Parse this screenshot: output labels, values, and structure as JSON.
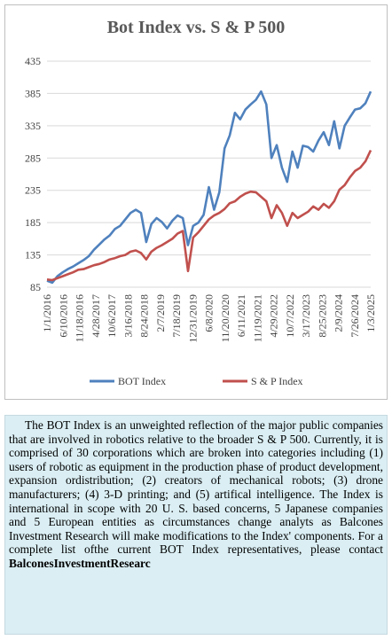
{
  "chart_data": {
    "type": "line",
    "title": "Bot Index vs. S & P 500",
    "ylim": [
      85,
      435
    ],
    "yticks": [
      85,
      135,
      185,
      235,
      285,
      335,
      385,
      435
    ],
    "xticks": [
      "1/1/2016",
      "6/10/2016",
      "11/18/2016",
      "4/28/2017",
      "10/6/2017",
      "3/16/2018",
      "8/24/2018",
      "2/7/2019",
      "7/18/2019",
      "12/31/2019",
      "6/8/2020",
      "11/20/2020",
      "6/11/2021",
      "11/19/2021",
      "4/29/2022",
      "10/7/2022",
      "3/17/2023",
      "8/25/2023",
      "2/9/2024",
      "7/26/2024",
      "1/3/2025"
    ],
    "legend_position": "bottom",
    "grid": true,
    "series": [
      {
        "name": "BOT Index",
        "color": "#4f81bd",
        "values": [
          95,
          92,
          102,
          108,
          113,
          117,
          122,
          127,
          133,
          143,
          151,
          159,
          165,
          175,
          180,
          190,
          200,
          205,
          200,
          155,
          183,
          192,
          186,
          176,
          188,
          196,
          192,
          150,
          180,
          185,
          197,
          240,
          205,
          232,
          300,
          320,
          355,
          345,
          360,
          368,
          375,
          388,
          368,
          285,
          305,
          270,
          248,
          295,
          270,
          304,
          302,
          295,
          312,
          325,
          305,
          342,
          300,
          335,
          348,
          360,
          362,
          370,
          388
        ]
      },
      {
        "name": "S & P Index",
        "color": "#c0504d",
        "values": [
          97,
          96,
          99,
          102,
          105,
          108,
          112,
          113,
          116,
          119,
          121,
          124,
          128,
          130,
          133,
          135,
          140,
          142,
          138,
          128,
          140,
          146,
          150,
          155,
          160,
          168,
          172,
          110,
          162,
          170,
          180,
          190,
          196,
          200,
          206,
          215,
          218,
          225,
          230,
          233,
          232,
          225,
          218,
          192,
          212,
          200,
          180,
          200,
          192,
          197,
          202,
          210,
          205,
          214,
          208,
          218,
          236,
          243,
          255,
          265,
          270,
          280,
          297
        ]
      }
    ]
  },
  "description": {
    "text": "The BOT Index is an unweighted reflection of the major public companies that are involved in robotics relative to the broader S & P 500. Currently, it is comprised of 30 corporations which are broken into categories including (1) users of robotic as equipment in the production phase of product development, expansion ordistribution; (2) creators of mechanical robots; (3) drone manufacturers; (4) 3-D printing; and (5) artifical intelligence. The Index is international in scope with 20 U. S. based concerns, 5 Japanese companies and 5 European entities as circumstances change analyts as Balcones Investment Research will make modifications to the Index' components. For a  complete list ofthe current BOT Index representatives, please contact",
    "contact": "BalconesInvestmentResearc"
  }
}
